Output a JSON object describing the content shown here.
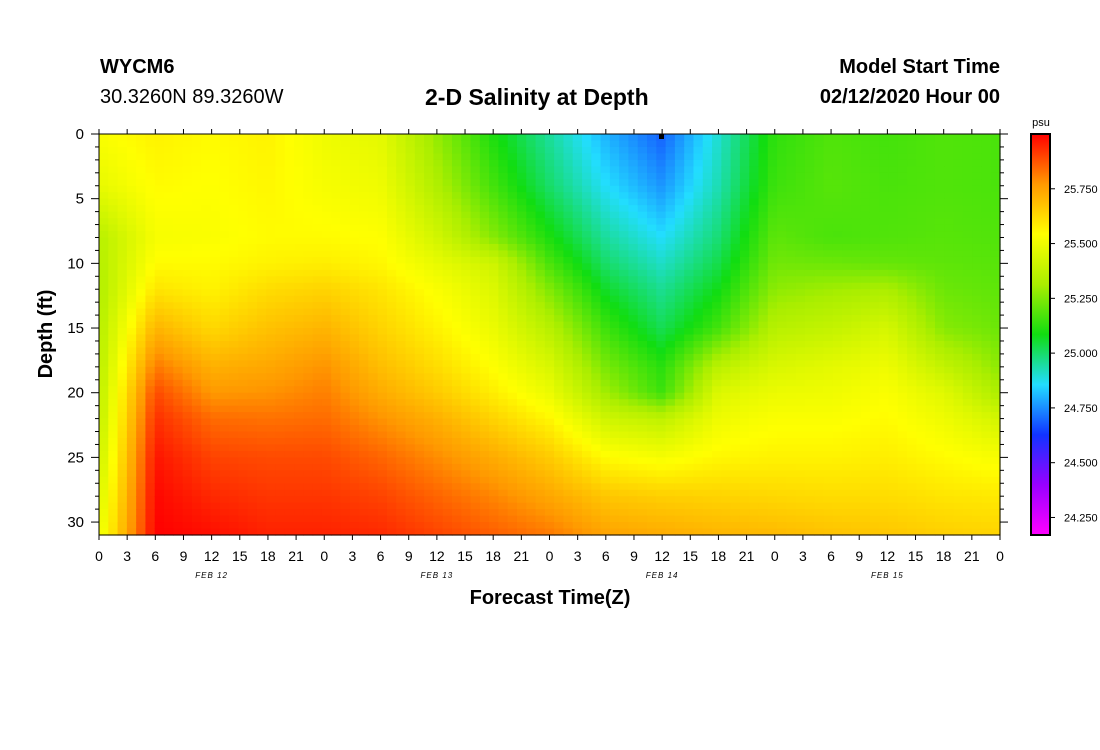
{
  "header": {
    "station": "WYCM6",
    "coords": "30.3260N 89.3260W",
    "title": "2-D Salinity at Depth",
    "start_label": "Model Start Time",
    "start_value": "02/12/2020 Hour 00"
  },
  "colors": {
    "scale": [
      "#ff00ff",
      "#9900ff",
      "#1133ff",
      "#22ddff",
      "#11dd11",
      "#aaee00",
      "#ffff00",
      "#ff9900",
      "#ff0000"
    ]
  },
  "chart_data": {
    "type": "heatmap",
    "title": "2-D Salinity at Depth",
    "xlabel": "Forecast Time(Z)",
    "ylabel": "Depth (ft)",
    "x_ticks": [
      "0",
      "3",
      "6",
      "9",
      "12",
      "15",
      "18",
      "21",
      "0",
      "3",
      "6",
      "9",
      "12",
      "15",
      "18",
      "21",
      "0",
      "3",
      "6",
      "9",
      "12",
      "15",
      "18",
      "21",
      "0",
      "3",
      "6",
      "9",
      "12",
      "15",
      "18",
      "21",
      "0"
    ],
    "x_range_hours": [
      0,
      96
    ],
    "date_labels": [
      "FEB 12",
      "FEB 13",
      "FEB 14",
      "FEB 15"
    ],
    "y_ticks": [
      "0",
      "5",
      "10",
      "15",
      "20",
      "25",
      "30"
    ],
    "ylim": [
      0,
      31
    ],
    "y_inverted": true,
    "colorbar": {
      "unit": "psu",
      "ticks": [
        "24.250",
        "24.500",
        "24.750",
        "25.000",
        "25.250",
        "25.500",
        "25.750"
      ],
      "range": [
        24.17,
        26.0
      ]
    },
    "times_hours": [
      0,
      6,
      12,
      18,
      24,
      30,
      36,
      42,
      48,
      54,
      60,
      66,
      72,
      78,
      84,
      90,
      96
    ],
    "depths_ft": [
      0,
      4,
      8,
      10,
      12,
      15,
      18,
      20,
      22,
      25,
      28,
      31
    ],
    "values": [
      [
        25.53,
        25.48,
        25.35,
        25.34,
        25.33,
        25.34,
        25.35,
        25.36,
        25.37,
        25.4,
        25.44,
        25.48
      ],
      [
        25.57,
        25.55,
        25.52,
        25.55,
        25.6,
        25.71,
        25.82,
        25.89,
        25.93,
        25.97,
        25.99,
        26.0
      ],
      [
        25.55,
        25.54,
        25.53,
        25.55,
        25.57,
        25.63,
        25.72,
        25.77,
        25.84,
        25.9,
        25.94,
        25.98
      ],
      [
        25.57,
        25.56,
        25.55,
        25.57,
        25.62,
        25.68,
        25.74,
        25.78,
        25.83,
        25.89,
        25.92,
        25.95
      ],
      [
        25.5,
        25.52,
        25.55,
        25.58,
        25.64,
        25.71,
        25.78,
        25.81,
        25.84,
        25.89,
        25.92,
        25.95
      ],
      [
        25.47,
        25.5,
        25.54,
        25.56,
        25.6,
        25.64,
        25.69,
        25.73,
        25.78,
        25.85,
        25.9,
        25.94
      ],
      [
        25.28,
        25.33,
        25.42,
        25.48,
        25.53,
        25.57,
        25.62,
        25.66,
        25.72,
        25.79,
        25.85,
        25.9
      ],
      [
        25.1,
        25.16,
        25.26,
        25.41,
        25.45,
        25.49,
        25.54,
        25.58,
        25.64,
        25.73,
        25.8,
        25.86
      ],
      [
        24.95,
        25.0,
        25.1,
        25.17,
        25.25,
        25.35,
        25.44,
        25.49,
        25.56,
        25.66,
        25.74,
        25.82
      ],
      [
        24.8,
        24.86,
        24.95,
        25.0,
        25.06,
        25.15,
        25.24,
        25.3,
        25.41,
        25.55,
        25.67,
        25.75
      ],
      [
        24.69,
        24.76,
        24.86,
        24.91,
        24.96,
        25.02,
        25.12,
        25.15,
        25.37,
        25.52,
        25.65,
        25.73
      ],
      [
        24.9,
        24.93,
        24.99,
        25.03,
        25.08,
        25.16,
        25.36,
        25.45,
        25.5,
        25.56,
        25.64,
        25.71
      ],
      [
        25.13,
        25.15,
        25.2,
        25.23,
        25.27,
        25.35,
        25.44,
        25.49,
        25.53,
        25.57,
        25.63,
        25.7
      ],
      [
        25.18,
        25.19,
        25.17,
        25.22,
        25.3,
        25.38,
        25.47,
        25.5,
        25.53,
        25.57,
        25.62,
        25.68
      ],
      [
        25.16,
        25.17,
        25.18,
        25.21,
        25.32,
        25.43,
        25.5,
        25.53,
        25.55,
        25.58,
        25.62,
        25.67
      ],
      [
        25.18,
        25.18,
        25.19,
        25.2,
        25.22,
        25.26,
        25.38,
        25.46,
        25.5,
        25.55,
        25.6,
        25.65
      ],
      [
        25.17,
        25.17,
        25.18,
        25.19,
        25.2,
        25.22,
        25.27,
        25.32,
        25.42,
        25.52,
        25.59,
        25.64
      ]
    ]
  }
}
